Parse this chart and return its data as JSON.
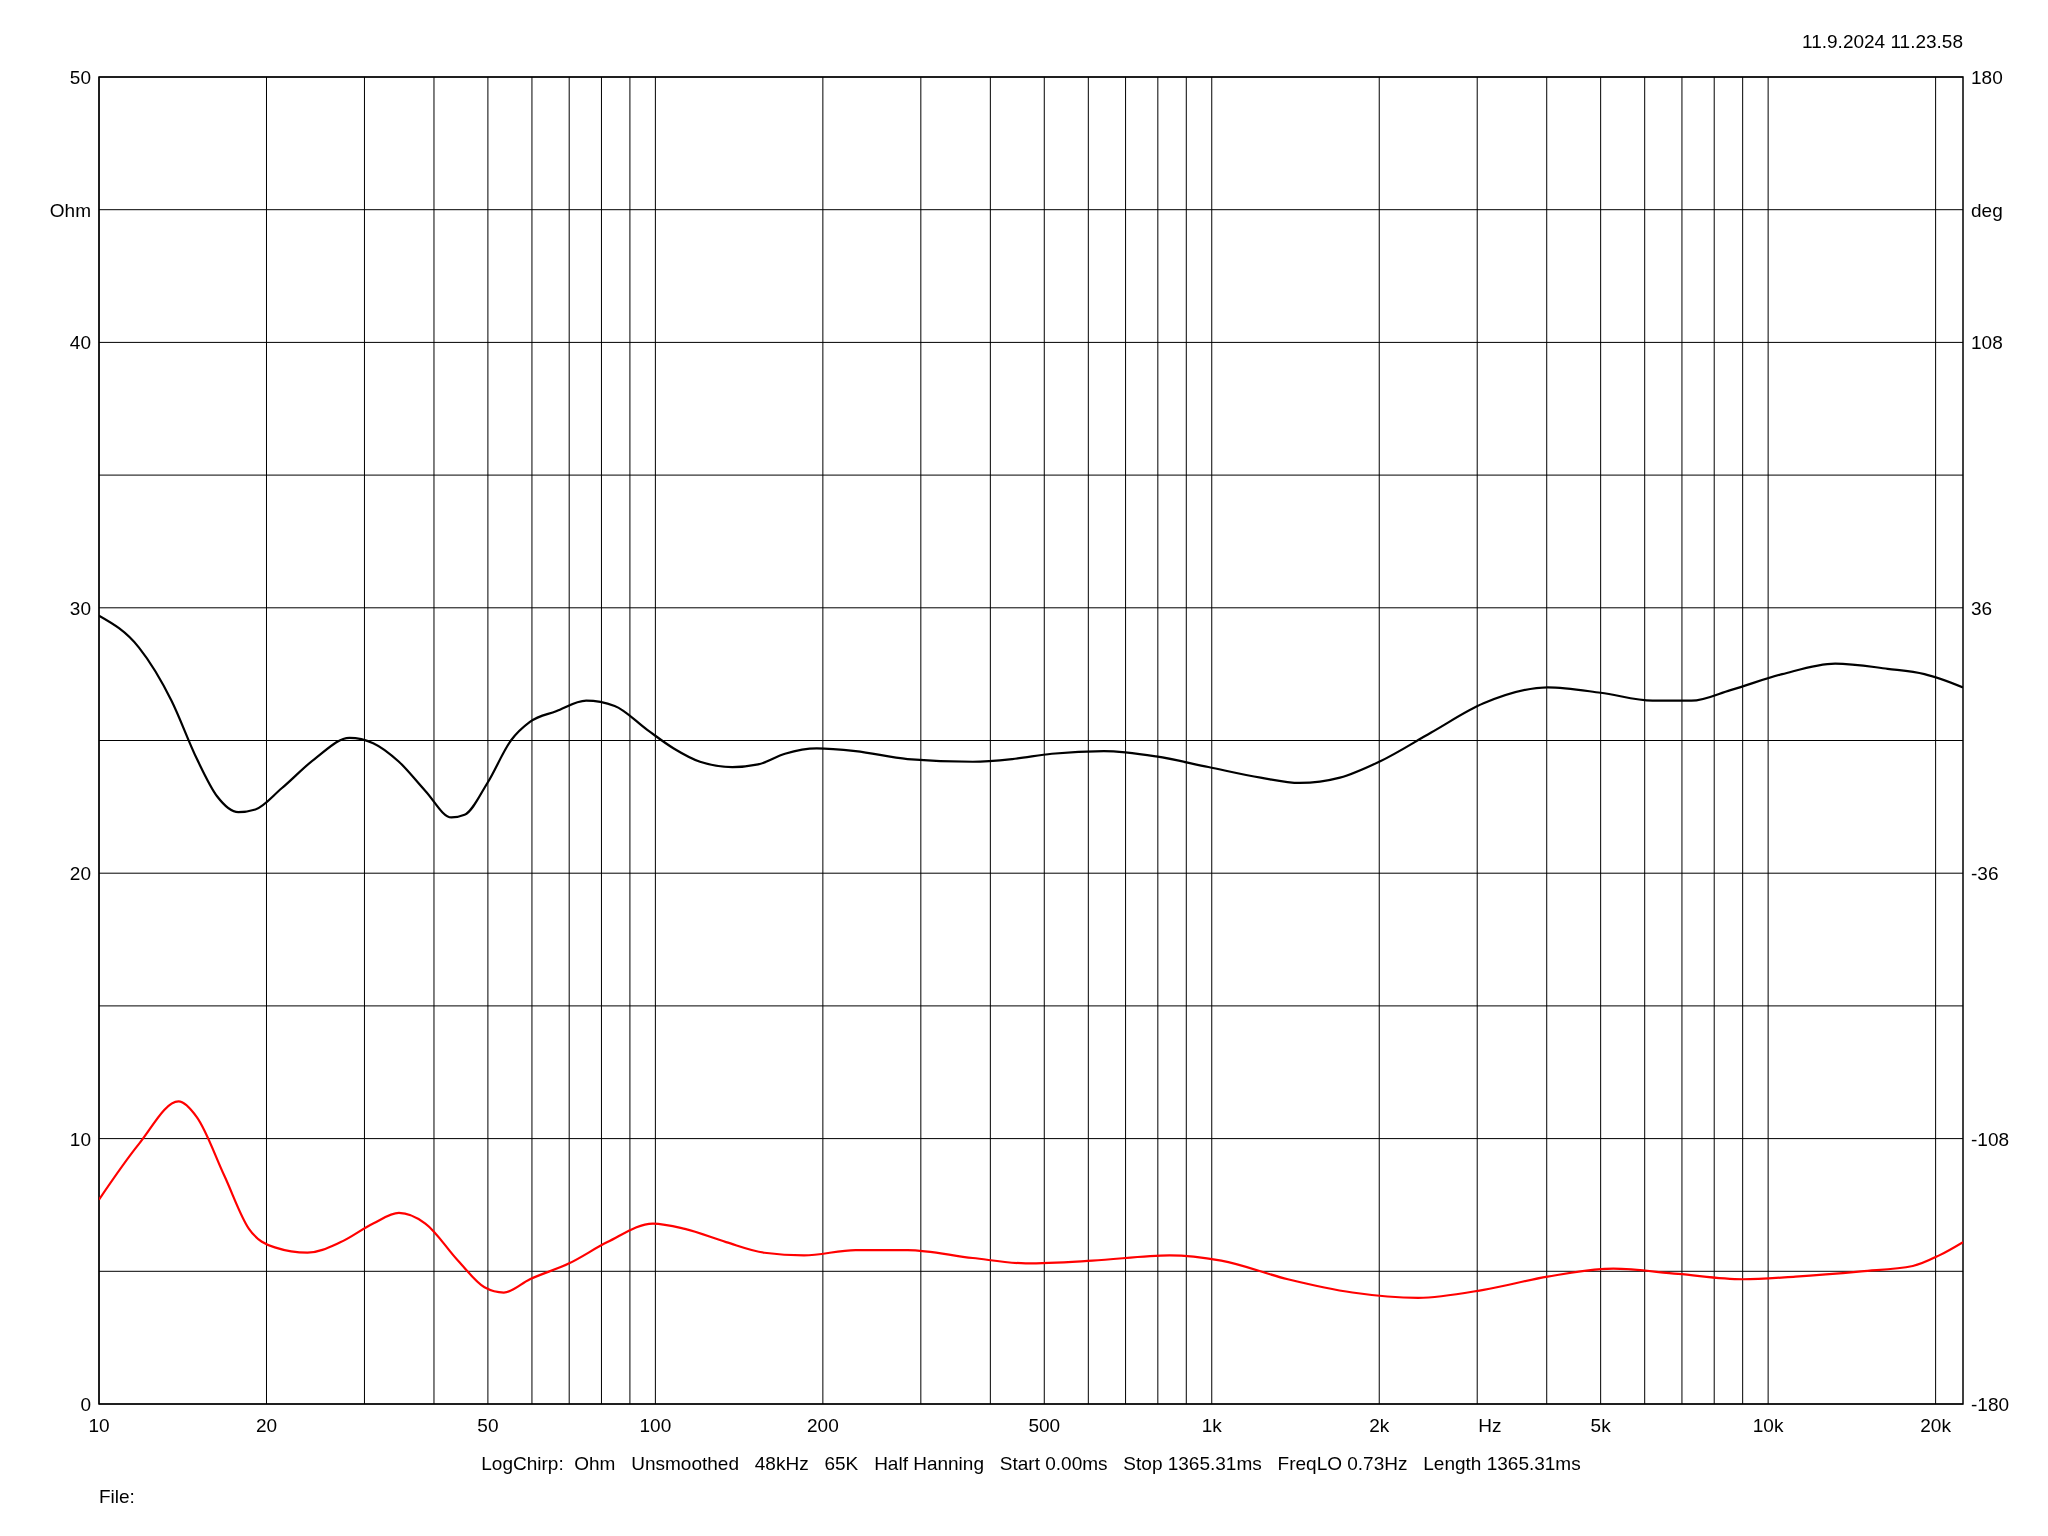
{
  "chart_data": {
    "type": "line",
    "log": "x",
    "grid": true,
    "xlabel": "Hz",
    "ylabel": "Ohm",
    "y2label": "deg",
    "annotations": [
      "11.9.2024 11.23.58",
      "LogChirp:  Ohm   Unsmoothed   48kHz   65K   Half Hanning   Start 0.00ms   Stop 1365.31ms   FreqLO 0.73Hz   Length 1365.31ms",
      "File:"
    ],
    "xlim": [
      10,
      22400
    ],
    "xticks": [
      10,
      20,
      {
        "value": 30,
        "label": null
      },
      {
        "value": 40,
        "label": null
      },
      50,
      {
        "value": 60,
        "label": null
      },
      {
        "value": 70,
        "label": null
      },
      {
        "value": 80,
        "label": null
      },
      {
        "value": 90,
        "label": null
      },
      100,
      200,
      {
        "value": 300,
        "label": null
      },
      {
        "value": 400,
        "label": null
      },
      500,
      {
        "value": 600,
        "label": null
      },
      {
        "value": 700,
        "label": null
      },
      {
        "value": 800,
        "label": null
      },
      {
        "value": 900,
        "label": null
      },
      {
        "value": 1000,
        "label": "1k"
      },
      {
        "value": 2000,
        "label": "2k"
      },
      {
        "value": 3000,
        "label": null
      },
      {
        "value": 4000,
        "label": null
      },
      {
        "value": 5000,
        "label": "5k"
      },
      {
        "value": 6000,
        "label": null
      },
      {
        "value": 7000,
        "label": null
      },
      {
        "value": 8000,
        "label": null
      },
      {
        "value": 9000,
        "label": null
      },
      {
        "value": 10000,
        "label": "10k"
      },
      {
        "value": 20000,
        "label": "20k"
      }
    ],
    "ylim": [
      0,
      50
    ],
    "yticks": [
      0,
      {
        "value": 5,
        "label": null
      },
      10,
      {
        "value": 15,
        "label": null
      },
      20,
      {
        "value": 25,
        "label": null
      },
      30,
      {
        "value": 35,
        "label": null
      },
      40,
      {
        "value": 45,
        "label": null
      },
      50
    ],
    "y2lim": [
      -180,
      180
    ],
    "y2ticks": [
      -180,
      -108,
      -36,
      36,
      108,
      180
    ],
    "series": [
      {
        "color": "#000000",
        "x": [
          10,
          11.8,
          13.5,
          15,
          16.3,
          17.8,
          19.1,
          21.3,
          24.4,
          28.2,
          31.1,
          34.6,
          38.6,
          43,
          45.4,
          49.9,
          55,
          59.5,
          66.3,
          75.1,
          84.5,
          96.7,
          107.9,
          120.3,
          137.5,
          153,
          171,
          195,
          229,
          284,
          372,
          438,
          516,
          640,
          794,
          986,
          1224,
          1440,
          1700,
          2000,
          2480,
          3080,
          4015,
          5000,
          6200,
          7280,
          8560,
          10600,
          13200,
          16400,
          19100,
          22400
        ],
        "values": [
          29.7,
          28.5,
          26.5,
          24.3,
          22.9,
          22.3,
          22.4,
          23.2,
          24.3,
          25.1,
          24.9,
          24.2,
          23.1,
          22.1,
          22.2,
          23.4,
          25.0,
          25.7,
          26.1,
          26.5,
          26.3,
          25.4,
          24.7,
          24.2,
          24.0,
          24.1,
          24.5,
          24.7,
          24.6,
          24.3,
          24.2,
          24.3,
          24.5,
          24.6,
          24.4,
          24.0,
          23.6,
          23.4,
          23.6,
          24.2,
          25.3,
          26.4,
          27.0,
          26.8,
          26.5,
          26.5,
          26.9,
          27.5,
          27.9,
          27.7,
          27.5,
          27.0
        ]
      },
      {
        "color": "#ff0000",
        "x": [
          10,
          11.8,
          13.9,
          15,
          16.8,
          18.6,
          20.7,
          23.7,
          27.2,
          31.1,
          34.6,
          38.6,
          44.2,
          49.3,
          53.4,
          59.5,
          70,
          82,
          99,
          113,
          134,
          157,
          185,
          229,
          284,
          372,
          463,
          610,
          840,
          1040,
          1370,
          1790,
          2350,
          3080,
          4015,
          5270,
          6890,
          9000,
          11200,
          14700,
          18200,
          20300,
          22400
        ],
        "values": [
          7.7,
          9.8,
          11.4,
          10.8,
          8.6,
          6.6,
          5.9,
          5.7,
          6.1,
          6.8,
          7.2,
          6.8,
          5.4,
          4.4,
          4.2,
          4.7,
          5.3,
          6.1,
          6.8,
          6.6,
          6.1,
          5.7,
          5.6,
          5.8,
          5.8,
          5.5,
          5.3,
          5.4,
          5.6,
          5.4,
          4.7,
          4.2,
          4.0,
          4.3,
          4.8,
          5.1,
          4.9,
          4.7,
          4.8,
          5.0,
          5.2,
          5.6,
          6.1
        ]
      }
    ]
  }
}
